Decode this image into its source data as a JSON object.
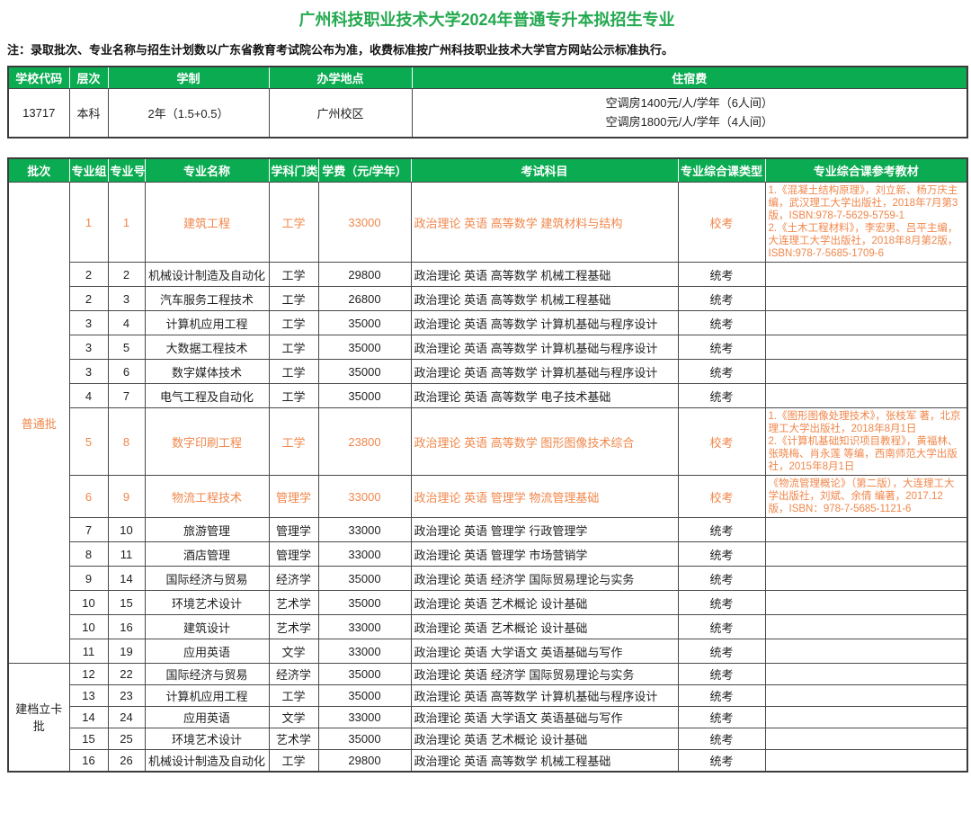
{
  "page": {
    "title": "广州科技职业技术大学2024年普通专升本拟招生专业",
    "note": "注：录取批次、专业名称与招生计划数以广东省教育考试院公布为准，收费标准按广州科技职业技术大学官方网站公示标准执行。"
  },
  "colors": {
    "header_green": "#0aab51",
    "title_green": "#23a94f",
    "highlight_orange": "#f0874b",
    "books_orange": "#ec6b41"
  },
  "info_table": {
    "headers": [
      "学校代码",
      "层次",
      "学制",
      "办学地点",
      "住宿费"
    ],
    "row": {
      "code": "13717",
      "level": "本科",
      "duration": "2年（1.5+0.5）",
      "location": "广州校区",
      "accommodation": [
        "空调房1400元/人/学年（6人间）",
        "空调房1800元/人/学年（4人间）"
      ]
    }
  },
  "majors_table": {
    "headers": [
      "批次",
      "专业组",
      "专业号",
      "专业名称",
      "学科门类",
      "学费（元/学年）",
      "考试科目",
      "专业综合课类型",
      "专业综合课参考教材"
    ],
    "batches": [
      {
        "name": "普通批",
        "rows": [
          {
            "group": "1",
            "num": "1",
            "major": "建筑工程",
            "category": "工学",
            "fee": "33000",
            "subjects": "政治理论 英语 高等数学 建筑材料与结构",
            "type": "校考",
            "books": [
              "1.《混凝土结构原理》，刘立新、杨万庆主编，武汉理工大学出版社，2018年7月第3版，ISBN:978-7-5629-5759-1",
              "2.《土木工程材料》，李宏男、吕平主编，大连理工大学出版社，2018年8月第2版，ISBN:978-7-5685-1709-6"
            ]
          },
          {
            "group": "2",
            "num": "2",
            "major": "机械设计制造及自动化",
            "category": "工学",
            "fee": "29800",
            "subjects": "政治理论 英语 高等数学 机械工程基础",
            "type": "统考",
            "books": []
          },
          {
            "group": "2",
            "num": "3",
            "major": "汽车服务工程技术",
            "category": "工学",
            "fee": "26800",
            "subjects": "政治理论 英语 高等数学 机械工程基础",
            "type": "统考",
            "books": []
          },
          {
            "group": "3",
            "num": "4",
            "major": "计算机应用工程",
            "category": "工学",
            "fee": "35000",
            "subjects": "政治理论 英语 高等数学 计算机基础与程序设计",
            "type": "统考",
            "books": []
          },
          {
            "group": "3",
            "num": "5",
            "major": "大数据工程技术",
            "category": "工学",
            "fee": "35000",
            "subjects": "政治理论 英语 高等数学 计算机基础与程序设计",
            "type": "统考",
            "books": []
          },
          {
            "group": "3",
            "num": "6",
            "major": "数字媒体技术",
            "category": "工学",
            "fee": "35000",
            "subjects": "政治理论 英语 高等数学 计算机基础与程序设计",
            "type": "统考",
            "books": []
          },
          {
            "group": "4",
            "num": "7",
            "major": "电气工程及自动化",
            "category": "工学",
            "fee": "35000",
            "subjects": "政治理论 英语 高等数学 电子技术基础",
            "type": "统考",
            "books": []
          },
          {
            "group": "5",
            "num": "8",
            "major": "数字印刷工程",
            "category": "工学",
            "fee": "23800",
            "subjects": "政治理论 英语 高等数学 图形图像技术综合",
            "type": "校考",
            "books": [
              "1.《图形图像处理技术》，张枝军 著，北京理工大学出版社，2018年8月1日",
              "2.《计算机基础知识项目教程》，黄福林、张晓梅、肖永莲 等编，西南师范大学出版社，2015年8月1日"
            ]
          },
          {
            "group": "6",
            "num": "9",
            "major": "物流工程技术",
            "category": "管理学",
            "fee": "33000",
            "subjects": "政治理论 英语 管理学 物流管理基础",
            "type": "校考",
            "books": [
              "《物流管理概论》（第二版），大连理工大学出版社，刘斌、余倩 编著，2017.12 版，ISBN：978-7-5685-1121-6"
            ]
          },
          {
            "group": "7",
            "num": "10",
            "major": "旅游管理",
            "category": "管理学",
            "fee": "33000",
            "subjects": "政治理论 英语 管理学 行政管理学",
            "type": "统考",
            "books": []
          },
          {
            "group": "8",
            "num": "11",
            "major": "酒店管理",
            "category": "管理学",
            "fee": "33000",
            "subjects": "政治理论 英语 管理学 市场营销学",
            "type": "统考",
            "books": []
          },
          {
            "group": "9",
            "num": "14",
            "major": "国际经济与贸易",
            "category": "经济学",
            "fee": "35000",
            "subjects": "政治理论 英语 经济学 国际贸易理论与实务",
            "type": "统考",
            "books": []
          },
          {
            "group": "10",
            "num": "15",
            "major": "环境艺术设计",
            "category": "艺术学",
            "fee": "35000",
            "subjects": "政治理论 英语 艺术概论 设计基础",
            "type": "统考",
            "books": []
          },
          {
            "group": "10",
            "num": "16",
            "major": "建筑设计",
            "category": "艺术学",
            "fee": "33000",
            "subjects": "政治理论 英语 艺术概论 设计基础",
            "type": "统考",
            "books": []
          },
          {
            "group": "11",
            "num": "19",
            "major": "应用英语",
            "category": "文学",
            "fee": "33000",
            "subjects": "政治理论 英语 大学语文 英语基础与写作",
            "type": "统考",
            "books": []
          }
        ]
      },
      {
        "name": "建档立卡批",
        "rows": [
          {
            "group": "12",
            "num": "22",
            "major": "国际经济与贸易",
            "category": "经济学",
            "fee": "35000",
            "subjects": "政治理论 英语 经济学 国际贸易理论与实务",
            "type": "统考",
            "books": []
          },
          {
            "group": "13",
            "num": "23",
            "major": "计算机应用工程",
            "category": "工学",
            "fee": "35000",
            "subjects": "政治理论 英语 高等数学 计算机基础与程序设计",
            "type": "统考",
            "books": []
          },
          {
            "group": "14",
            "num": "24",
            "major": "应用英语",
            "category": "文学",
            "fee": "33000",
            "subjects": "政治理论 英语 大学语文 英语基础与写作",
            "type": "统考",
            "books": []
          },
          {
            "group": "15",
            "num": "25",
            "major": "环境艺术设计",
            "category": "艺术学",
            "fee": "35000",
            "subjects": "政治理论 英语 艺术概论 设计基础",
            "type": "统考",
            "books": []
          },
          {
            "group": "16",
            "num": "26",
            "major": "机械设计制造及自动化",
            "category": "工学",
            "fee": "29800",
            "subjects": "政治理论 英语 高等数学 机械工程基础",
            "type": "统考",
            "books": []
          }
        ]
      }
    ]
  }
}
